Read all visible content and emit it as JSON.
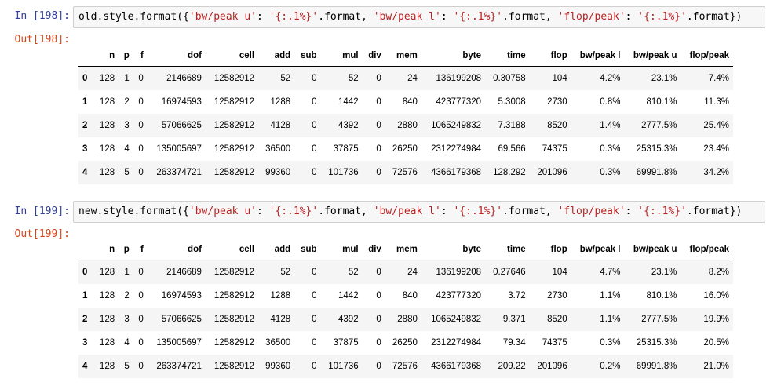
{
  "cells": [
    {
      "in_prompt": "In [198]:",
      "out_prompt": "Out[198]:",
      "code": [
        {
          "t": "old.style.format({"
        },
        {
          "t": "'bw/peak u'",
          "s": 1
        },
        {
          "t": ": "
        },
        {
          "t": "'{:.1%}'",
          "s": 1
        },
        {
          "t": ".format, "
        },
        {
          "t": "'bw/peak l'",
          "s": 1
        },
        {
          "t": ": "
        },
        {
          "t": "'{:.1%}'",
          "s": 1
        },
        {
          "t": ".format, "
        },
        {
          "t": "'flop/peak'",
          "s": 1
        },
        {
          "t": ": "
        },
        {
          "t": "'{:.1%}'",
          "s": 1
        },
        {
          "t": ".format})"
        }
      ],
      "table": {
        "columns": [
          "n",
          "p",
          "f",
          "dof",
          "cell",
          "add",
          "sub",
          "mul",
          "div",
          "mem",
          "byte",
          "time",
          "flop",
          "bw/peak l",
          "bw/peak u",
          "flop/peak"
        ],
        "rows": [
          {
            "index": "0",
            "values": [
              "128",
              "1",
              "0",
              "2146689",
              "12582912",
              "52",
              "0",
              "52",
              "0",
              "24",
              "136199208",
              "0.30758",
              "104",
              "4.2%",
              "23.1%",
              "7.4%"
            ]
          },
          {
            "index": "1",
            "values": [
              "128",
              "2",
              "0",
              "16974593",
              "12582912",
              "1288",
              "0",
              "1442",
              "0",
              "840",
              "423777320",
              "5.3008",
              "2730",
              "0.8%",
              "810.1%",
              "11.3%"
            ]
          },
          {
            "index": "2",
            "values": [
              "128",
              "3",
              "0",
              "57066625",
              "12582912",
              "4128",
              "0",
              "4392",
              "0",
              "2880",
              "1065249832",
              "7.3188",
              "8520",
              "1.4%",
              "2777.5%",
              "25.4%"
            ]
          },
          {
            "index": "3",
            "values": [
              "128",
              "4",
              "0",
              "135005697",
              "12582912",
              "36500",
              "0",
              "37875",
              "0",
              "26250",
              "2312274984",
              "69.566",
              "74375",
              "0.3%",
              "25315.3%",
              "23.4%"
            ]
          },
          {
            "index": "4",
            "values": [
              "128",
              "5",
              "0",
              "263374721",
              "12582912",
              "99360",
              "0",
              "101736",
              "0",
              "72576",
              "4366179368",
              "128.292",
              "201096",
              "0.3%",
              "69991.8%",
              "34.2%"
            ]
          }
        ]
      }
    },
    {
      "in_prompt": "In [199]:",
      "out_prompt": "Out[199]:",
      "code": [
        {
          "t": "new.style.format({"
        },
        {
          "t": "'bw/peak u'",
          "s": 1
        },
        {
          "t": ": "
        },
        {
          "t": "'{:.1%}'",
          "s": 1
        },
        {
          "t": ".format, "
        },
        {
          "t": "'bw/peak l'",
          "s": 1
        },
        {
          "t": ": "
        },
        {
          "t": "'{:.1%}'",
          "s": 1
        },
        {
          "t": ".format, "
        },
        {
          "t": "'flop/peak'",
          "s": 1
        },
        {
          "t": ": "
        },
        {
          "t": "'{:.1%}'",
          "s": 1
        },
        {
          "t": ".format})"
        }
      ],
      "table": {
        "columns": [
          "n",
          "p",
          "f",
          "dof",
          "cell",
          "add",
          "sub",
          "mul",
          "div",
          "mem",
          "byte",
          "time",
          "flop",
          "bw/peak l",
          "bw/peak u",
          "flop/peak"
        ],
        "rows": [
          {
            "index": "0",
            "values": [
              "128",
              "1",
              "0",
              "2146689",
              "12582912",
              "52",
              "0",
              "52",
              "0",
              "24",
              "136199208",
              "0.27646",
              "104",
              "4.7%",
              "23.1%",
              "8.2%"
            ]
          },
          {
            "index": "1",
            "values": [
              "128",
              "2",
              "0",
              "16974593",
              "12582912",
              "1288",
              "0",
              "1442",
              "0",
              "840",
              "423777320",
              "3.72",
              "2730",
              "1.1%",
              "810.1%",
              "16.0%"
            ]
          },
          {
            "index": "2",
            "values": [
              "128",
              "3",
              "0",
              "57066625",
              "12582912",
              "4128",
              "0",
              "4392",
              "0",
              "2880",
              "1065249832",
              "9.371",
              "8520",
              "1.1%",
              "2777.5%",
              "19.9%"
            ]
          },
          {
            "index": "3",
            "values": [
              "128",
              "4",
              "0",
              "135005697",
              "12582912",
              "36500",
              "0",
              "37875",
              "0",
              "26250",
              "2312274984",
              "79.34",
              "74375",
              "0.3%",
              "25315.3%",
              "20.5%"
            ]
          },
          {
            "index": "4",
            "values": [
              "128",
              "5",
              "0",
              "263374721",
              "12582912",
              "99360",
              "0",
              "101736",
              "0",
              "72576",
              "4366179368",
              "209.22",
              "201096",
              "0.2%",
              "69991.8%",
              "21.0%"
            ]
          }
        ]
      }
    }
  ]
}
